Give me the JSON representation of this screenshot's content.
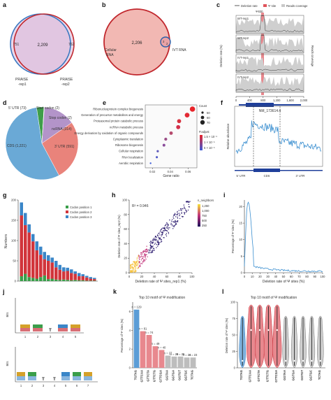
{
  "panels": {
    "a": {
      "label": "a",
      "left_only": "751",
      "overlap": "2,209",
      "right_only": "762",
      "left_name": [
        "PRAISE",
        "-rep1"
      ],
      "right_name": [
        "PRAISE",
        "-rep2"
      ],
      "colors": {
        "left": "#3b79c2",
        "right": "#c1272d",
        "fill": "#d8b8d9"
      }
    },
    "b": {
      "label": "b",
      "big_value": "2,206",
      "small_value": "3",
      "overlap": "2",
      "big_name": [
        "Cellular",
        "RNA"
      ],
      "small_name": "IVT RNA",
      "colors": {
        "big": "#c1272d",
        "small": "#2b5fa8",
        "fill": "#f2b8b3"
      }
    },
    "c": {
      "label": "c",
      "legend": [
        "Deletion rate",
        "Ψ site",
        "Reads coverage"
      ],
      "site": "Ψ830",
      "tracks": [
        "WT-rep1",
        "WT-rep2",
        "IVT-rep1",
        "IVT-rep2"
      ],
      "x_ticks": [
        "0",
        "400",
        "800",
        "1,200",
        "1,600",
        "2,000"
      ],
      "gene": "NM_173614.4",
      "ylabel_left": "Deletion rate (%)",
      "ylabel_right": "Reads coverage"
    },
    "d": {
      "label": "d",
      "slices": [
        {
          "name": "5′ UTR (73)",
          "value": 73,
          "color": "#3f9e4a"
        },
        {
          "name": "Start codon (2)",
          "value": 2,
          "color": "#4fa3dc"
        },
        {
          "name": "Stop codon (2)",
          "value": 2,
          "color": "#c87aa8"
        },
        {
          "name": "ncRNA (314)",
          "value": 314,
          "color": "#b394c9"
        },
        {
          "name": "3′ UTR (591)",
          "value": 591,
          "color": "#e9837b"
        },
        {
          "name": "CDS (1,221)",
          "value": 1221,
          "color": "#6aa9d6"
        }
      ]
    },
    "e": {
      "label": "e",
      "terms": [
        "Ribonucleoprotein complex biogenesis",
        "Generation of precursor metabolites and energy",
        "Proteasomal protein catabolic process",
        "ncRNA metabolic process",
        "Energy derivation by oxidation of organic compounds",
        "Cytoplasmic translation",
        "Ribosome biogenesis",
        "Cellular respiration",
        "RNA localization",
        "Aerobic respiration"
      ],
      "gene_ratio": [
        0.065,
        0.059,
        0.05,
        0.049,
        0.041,
        0.035,
        0.033,
        0.026,
        0.025,
        0.018
      ],
      "count": [
        70,
        62,
        52,
        53,
        44,
        38,
        35,
        28,
        27,
        20
      ],
      "p_color": [
        "#e8242a",
        "#e32a34",
        "#d6323f",
        "#d3304a",
        "#b54a6d",
        "#9c4f87",
        "#8a4c9b",
        "#5e59b9",
        "#4e57c8",
        "#3b5bd8"
      ],
      "x_ticks": [
        "0.02",
        "0.04",
        "0.06"
      ],
      "xlabel": "Gene ratio",
      "legend_count_title": "Count",
      "legend_counts": [
        "50",
        "60",
        "70"
      ],
      "legend_p_title": "P.adjust",
      "legend_p": [
        "1.5 × 10⁻⁵",
        "1 × 10⁻⁵",
        "5 × 10⁻⁶"
      ]
    },
    "f": {
      "label": "f",
      "ylabel": "Relative abundance",
      "x_regions": [
        "5′ UTR",
        "CDS",
        "3′ UTR"
      ]
    },
    "g": {
      "label": "g",
      "ylabel": "Numbers",
      "legend": [
        "Codon position 1",
        "Codon position 2",
        "Codon position 3"
      ],
      "colors": [
        "#3a9e4a",
        "#d1353b",
        "#3a86c8"
      ],
      "y_ticks": [
        "0",
        "50",
        "100",
        "150",
        "200"
      ]
    },
    "h": {
      "label": "h",
      "r2": "R² = 0.946",
      "xlabel": "Deletion rate of Ψ sites_rep1 (%)",
      "ylabel": "Deletion rate of Ψ sites_rep2 (%)",
      "ticks": [
        "0",
        "20",
        "40",
        "60",
        "80",
        "100"
      ],
      "legend_title": "n_neighbors",
      "legend_vals": [
        "1,250",
        "1,000",
        "750",
        "500",
        "250"
      ]
    },
    "i": {
      "label": "i",
      "xlabel": "Deletion rate of Ψ sites (%)",
      "ylabel": "Percentage of Ψ sites (%)",
      "x_ticks": [
        "0",
        "10",
        "20",
        "30",
        "40",
        "50",
        "60",
        "70",
        "80",
        "90",
        "100"
      ],
      "y_ticks": [
        "0",
        "5",
        "10",
        "15",
        "20"
      ]
    },
    "j": {
      "label": "j",
      "ylabel": "Bits",
      "top_positions": [
        "1",
        "2",
        "3",
        "4",
        "5"
      ],
      "bottom_positions": [
        "1",
        "2",
        "3",
        "4",
        "5",
        "6",
        "7"
      ]
    },
    "k": {
      "label": "k",
      "title": "Top 10 motif of Ψ modification",
      "ylabel": "Percentage of Ψ sites (%)",
      "motifs": [
        "TGTAG",
        "GTTCAA",
        "GTTCTA",
        "GTTCTG",
        "GTTCGA",
        "GGTAA",
        "GGTGA",
        "GGTGT",
        "GGTGC",
        "TCTAG"
      ],
      "motif_colors": [
        "#2b7bc6",
        "#d8535c",
        "#d8535c",
        "#d8535c",
        "#d8535c",
        "#777777",
        "#777777",
        "#777777",
        "#777777",
        "#777777"
      ],
      "n_labels": [
        "n = 129",
        "n = 81",
        "n = 74",
        "n = 49",
        "n = 40",
        "n = 27",
        "n = 26",
        "n = 25",
        "n = 24",
        "n = 23"
      ],
      "values": [
        6.2,
        3.9,
        3.5,
        2.3,
        1.9,
        1.3,
        1.2,
        1.2,
        1.1,
        1.1
      ],
      "bar_colors": [
        "#5b9dd6",
        "#e8888e",
        "#e8888e",
        "#e8888e",
        "#e8888e",
        "#bdbdbd",
        "#bdbdbd",
        "#bdbdbd",
        "#bdbdbd",
        "#bdbdbd"
      ],
      "y_ticks": [
        "0",
        "2",
        "4",
        "6"
      ]
    },
    "l": {
      "label": "l",
      "title": "Top 10 motif of Ψ modification",
      "ylabel": "Deletion rate of Ψ sites (%)",
      "y_ticks": [
        "0",
        "25",
        "50",
        "75",
        "100"
      ]
    }
  },
  "chart_data": [
    {
      "type": "bar",
      "title": "Top 10 motif of Ψ modification",
      "categories": [
        "TGTAG",
        "GTTCAA",
        "GTTCTA",
        "GTTCTG",
        "GTTCGA",
        "GGTAA",
        "GGTGA",
        "GGTGT",
        "GGTGC",
        "TCTAG"
      ],
      "values": [
        6.2,
        3.9,
        3.5,
        2.3,
        1.9,
        1.3,
        1.2,
        1.2,
        1.1,
        1.1
      ],
      "ylabel": "Percentage of Ψ sites (%)",
      "ylim": [
        0,
        7
      ]
    },
    {
      "type": "pie",
      "categories": [
        "5′ UTR",
        "Start codon",
        "Stop codon",
        "ncRNA",
        "3′ UTR",
        "CDS"
      ],
      "values": [
        73,
        2,
        2,
        314,
        591,
        1221
      ]
    },
    {
      "type": "scatter",
      "xlabel": "Gene ratio",
      "categories": [
        "Ribonucleoprotein complex biogenesis",
        "Generation of precursor metabolites and energy",
        "Proteasomal protein catabolic process",
        "ncRNA metabolic process",
        "Energy derivation by oxidation of organic compounds",
        "Cytoplasmic translation",
        "Ribosome biogenesis",
        "Cellular respiration",
        "RNA localization",
        "Aerobic respiration"
      ],
      "x": [
        0.065,
        0.059,
        0.05,
        0.049,
        0.041,
        0.035,
        0.033,
        0.026,
        0.025,
        0.018
      ]
    },
    {
      "type": "bar",
      "ylabel": "Numbers",
      "series": [
        {
          "name": "Codon position 1",
          "values": [
            12,
            18,
            10,
            8,
            6,
            10,
            14,
            5,
            6,
            4,
            3,
            4,
            3,
            2,
            3,
            2,
            2,
            1,
            1,
            1
          ]
        },
        {
          "name": "Codon position 2",
          "values": [
            150,
            120,
            110,
            90,
            70,
            55,
            40,
            45,
            40,
            30,
            25,
            20,
            22,
            18,
            15,
            10,
            10,
            8,
            5,
            4
          ]
        },
        {
          "name": "Codon position 3",
          "values": [
            32,
            30,
            20,
            18,
            22,
            20,
            18,
            14,
            12,
            16,
            12,
            10,
            8,
            9,
            6,
            8,
            5,
            4,
            4,
            3
          ]
        }
      ],
      "ylim": [
        0,
        200
      ]
    }
  ]
}
